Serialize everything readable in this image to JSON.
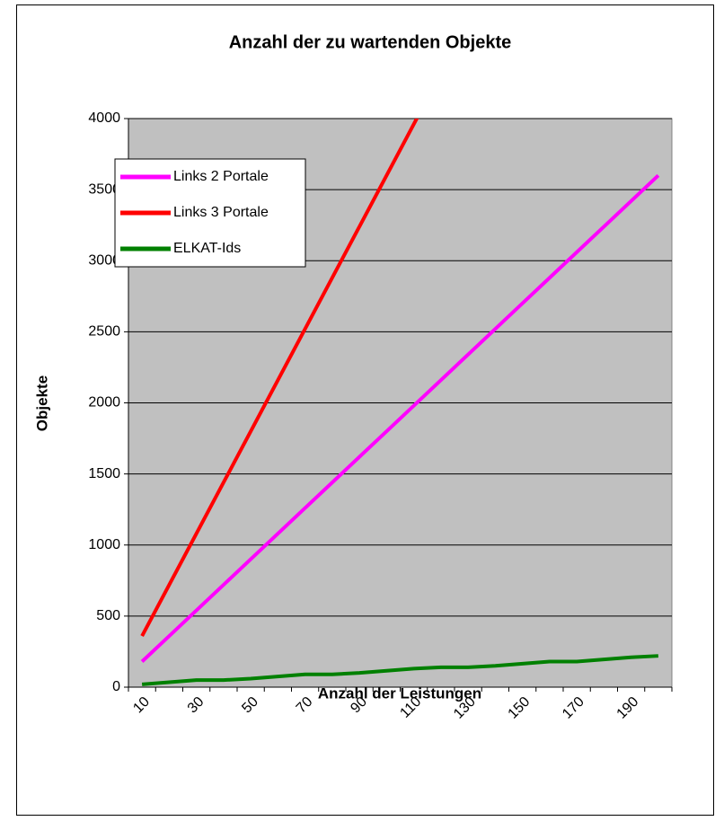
{
  "chart_data": {
    "type": "line",
    "title": "Anzahl der zu wartenden Objekte",
    "x_label": "Anzahl der Leistungen",
    "y_label": "Objekte",
    "categories": [
      "10",
      null,
      "30",
      null,
      "50",
      null,
      "70",
      null,
      "90",
      null,
      "110",
      null,
      "130",
      null,
      "150",
      null,
      "170",
      null,
      "190",
      null
    ],
    "series": [
      {
        "name": "Links 2 Portale",
        "color": "#ff00ff",
        "values": [
          180,
          360,
          540,
          720,
          900,
          1080,
          1260,
          1440,
          1620,
          1800,
          1980,
          2160,
          2340,
          2520,
          2700,
          2880,
          3060,
          3240,
          3420,
          3600
        ]
      },
      {
        "name": "Links 3 Portale",
        "color": "#ff0000",
        "values": [
          360,
          720,
          1080,
          1440,
          1800,
          2160,
          2520,
          2880,
          3240,
          3600,
          3960,
          4320,
          null,
          null,
          null,
          null,
          null,
          null,
          null,
          null
        ]
      },
      {
        "name": "ELKAT-Ids",
        "color": "#008000",
        "values": [
          20,
          35,
          50,
          50,
          60,
          75,
          90,
          90,
          100,
          115,
          130,
          140,
          140,
          150,
          165,
          180,
          180,
          195,
          210,
          220
        ]
      }
    ],
    "ylim": [
      0,
      4000
    ],
    "yticks": [
      0,
      500,
      1000,
      1500,
      2000,
      2500,
      3000,
      3500,
      4000
    ],
    "grid": true,
    "legend": "upper left",
    "plot_background": "#c0c0c0"
  }
}
